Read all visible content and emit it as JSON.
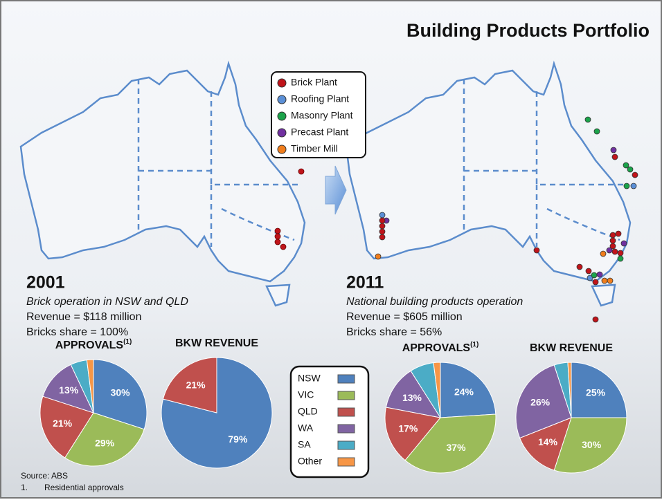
{
  "header": {
    "title": "Building Products Portfolio"
  },
  "map_legend": [
    "Brick Plant",
    "Roofing Plant",
    "Masonry Plant",
    "Precast Plant",
    "Timber Mill"
  ],
  "left": {
    "year": "2001",
    "subtitle": "Brick operation in NSW and QLD",
    "revenue": "Revenue = $118 million",
    "share": "Bricks share = 100%"
  },
  "right": {
    "year": "2011",
    "subtitle": "National building products operation",
    "revenue": "Revenue = $605 million",
    "share": "Bricks share = 56%"
  },
  "pie_legend": [
    {
      "name": "NSW",
      "color": "#4f81bd"
    },
    {
      "name": "VIC",
      "color": "#9bbb59"
    },
    {
      "name": "QLD",
      "color": "#c0504d"
    },
    {
      "name": "WA",
      "color": "#8064a2"
    },
    {
      "name": "SA",
      "color": "#4bacc6"
    },
    {
      "name": "Other",
      "color": "#f79646"
    }
  ],
  "chart_data": [
    {
      "type": "pie",
      "title": "APPROVALS",
      "title_note": "(1)",
      "categories": [
        "NSW",
        "VIC",
        "QLD",
        "WA",
        "SA",
        "Other"
      ],
      "values": [
        30,
        29,
        21,
        13,
        5,
        2
      ],
      "value_labels": [
        "30%",
        "29%",
        "21%",
        "13%",
        null,
        null
      ],
      "colors": [
        "#4f81bd",
        "#9bbb59",
        "#c0504d",
        "#8064a2",
        "#4bacc6",
        "#f79646"
      ]
    },
    {
      "type": "pie",
      "title": "BKW REVENUE",
      "categories": [
        "NSW",
        "QLD"
      ],
      "values": [
        79,
        21
      ],
      "value_labels": [
        "79%",
        "21%"
      ],
      "colors": [
        "#4f81bd",
        "#c0504d"
      ]
    },
    {
      "type": "pie",
      "title": "APPROVALS",
      "title_note": "(1)",
      "categories": [
        "NSW",
        "VIC",
        "QLD",
        "WA",
        "SA",
        "Other"
      ],
      "values": [
        24,
        37,
        17,
        13,
        7,
        2
      ],
      "value_labels": [
        "24%",
        "37%",
        "17%",
        "13%",
        null,
        null
      ],
      "colors": [
        "#4f81bd",
        "#9bbb59",
        "#c0504d",
        "#8064a2",
        "#4bacc6",
        "#f79646"
      ]
    },
    {
      "type": "pie",
      "title": "BKW REVENUE",
      "categories": [
        "NSW",
        "VIC",
        "QLD",
        "WA",
        "SA",
        "Other"
      ],
      "values": [
        25,
        30,
        14,
        26,
        4,
        1
      ],
      "value_labels": [
        "25%",
        "30%",
        "14%",
        "26%",
        null,
        null
      ],
      "colors": [
        "#4f81bd",
        "#9bbb59",
        "#c0504d",
        "#8064a2",
        "#4bacc6",
        "#f79646"
      ]
    }
  ],
  "footer": {
    "source": "Source: ABS",
    "note_number": "1.",
    "note": "Residential approvals"
  }
}
